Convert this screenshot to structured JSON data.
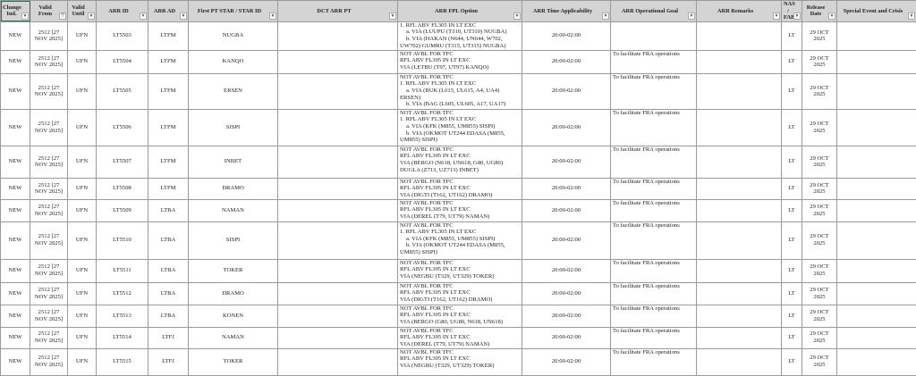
{
  "columns": [
    {
      "label": "Change Ind.",
      "filter": "▼"
    },
    {
      "label": "Valid From",
      "filter": "⊤"
    },
    {
      "label": "Valid Until",
      "filter": "▼"
    },
    {
      "label": "ARR ID",
      "filter": "▼"
    },
    {
      "label": "ARR AD",
      "filter": "▼"
    },
    {
      "label": "First PT STAR / STAR ID",
      "filter": "▼"
    },
    {
      "label": "DCT ARR PT",
      "filter": "▼"
    },
    {
      "label": "ARR FPL Option",
      "filter": "▼"
    },
    {
      "label": "ARR Time Applicability",
      "filter": "▼"
    },
    {
      "label": "ARR Operational Goal",
      "filter": "▼"
    },
    {
      "label": "ARR Remarks",
      "filter": "▼"
    },
    {
      "label": "NAS / FAB",
      "filter": "▼"
    },
    {
      "label": "Release Date",
      "filter": "▼"
    },
    {
      "label": "Special Event and Crisis",
      "filter": "▼"
    }
  ],
  "rows": [
    {
      "ind": "NEW",
      "from": "2512 [27 NOV 2025]",
      "until": "UFN",
      "id": "LT5503",
      "ad": "LTFM",
      "star": "NUGBA",
      "dct": "",
      "fpl": [
        "1. RFL ABV FL305 IN LT EXC",
        "  a. VIA (LUUPU (T310, UT310) NUGBA)",
        "  b. VIA (HAKAN (N644, UN644, W702,",
        "UW702) GUMRU (T315, UT315) NUGBA)"
      ],
      "time": "20:00-02:00",
      "goal": "",
      "remarks": "",
      "nas": "LT",
      "release": "29 OCT 2025",
      "special": ""
    },
    {
      "ind": "NEW",
      "from": "2512 [27 NOV 2025]",
      "until": "UFN",
      "id": "LT5504",
      "ad": "LTFM",
      "star": "KANQO",
      "dct": "",
      "fpl": [
        "NOT AVBL FOR TFC",
        "RFL ABV FL305 IN LT EXC",
        "VIA (LETBU (T97, UT97) KANQO)"
      ],
      "time": "20:00-02:00",
      "goal": "To facilitate FRA operations",
      "remarks": "",
      "nas": "LT",
      "release": "29 OCT 2025",
      "special": ""
    },
    {
      "ind": "NEW",
      "from": "2512 [27 NOV 2025]",
      "until": "UFN",
      "id": "LT5505",
      "ad": "LTFM",
      "star": "ERSEN",
      "dct": "",
      "fpl": [
        "NOT AVBL FOR TFC",
        "1. RFL ABV FL305 IN LT EXC",
        "  a. VIA (BUK (L615, UL615, A4, UA4)",
        "ERSEN)",
        "  b. VIA (BAG (L605, UL605, A17, UA17)"
      ],
      "time": "20:00-02:00",
      "goal": "To facilitate FRA operations",
      "remarks": "",
      "nas": "LT",
      "release": "29 OCT 2025",
      "special": ""
    },
    {
      "ind": "NEW",
      "from": "2512 [27 NOV 2025]",
      "until": "UFN",
      "id": "LT5506",
      "ad": "LTFM",
      "star": "SISPI",
      "dct": "",
      "fpl": [
        "NOT AVBL FOR TFC",
        "1. RFL ABV FL305 IN LT EXC",
        "  a. VIA (KFK (M855, UM855) SISPI)",
        "  b. VIA (OKMOT UT244 EDASA (M855,",
        "UM855) SISPI)"
      ],
      "time": "20:00-02:00",
      "goal": "To facilitate FRA operations",
      "remarks": "",
      "nas": "LT",
      "release": "29 OCT 2025",
      "special": ""
    },
    {
      "ind": "NEW",
      "from": "2512 [27 NOV 2025]",
      "until": "UFN",
      "id": "LT5507",
      "ad": "LTFM",
      "star": "INBET",
      "dct": "",
      "fpl": [
        "NOT AVBL FOR TFC",
        "RFL ABV FL305 IN LT EXC",
        "VIA (BERGO (N618, UN618, G80, UG80)",
        "DUGLA (Z713, UZ713) INBET)"
      ],
      "time": "20:00-02:00",
      "goal": "To facilitate FRA operations",
      "remarks": "",
      "nas": "LT",
      "release": "29 OCT 2025",
      "special": ""
    },
    {
      "ind": "NEW",
      "from": "2512 [27 NOV 2025]",
      "until": "UFN",
      "id": "LT5508",
      "ad": "LTFM",
      "star": "DRAMO",
      "dct": "",
      "fpl": [
        "NOT AVBL FOR TFC",
        "RFL ABV FL305 IN LT EXC",
        "VIA (DIGTI (T162, UT162) DRAMO)"
      ],
      "time": "20:00-02:00",
      "goal": "To facilitate FRA operations",
      "remarks": "",
      "nas": "LT",
      "release": "29 OCT 2025",
      "special": ""
    },
    {
      "ind": "NEW",
      "from": "2512 [27 NOV 2025]",
      "until": "UFN",
      "id": "LT5509",
      "ad": "LTBA",
      "star": "NAMAN",
      "dct": "",
      "fpl": [
        "NOT AVBL FOR TFC",
        "RFL ABV FL305 IN LT EXC",
        "VIA (DEREL (T79, UT79) NAMAN)"
      ],
      "time": "20:00-02:00",
      "goal": "To facilitate FRA operations",
      "remarks": "",
      "nas": "LT",
      "release": "29 OCT 2025",
      "special": ""
    },
    {
      "ind": "NEW",
      "from": "2512 [27 NOV 2025]",
      "until": "UFN",
      "id": "LT5510",
      "ad": "LTBA",
      "star": "SISPI",
      "dct": "",
      "fpl": [
        "NOT AVBL FOR TFC",
        "1. RFL ABV FL305 IN LT EXC",
        "  a. VIA (KFK (M855, UM855) SISPI)",
        "  b. VIA (OKMOT UT244 EDASA (M855,",
        "UM855) SISPI)"
      ],
      "time": "20:00-02:00",
      "goal": "To facilitate FRA operations",
      "remarks": "",
      "nas": "LT",
      "release": "29 OCT 2025",
      "special": ""
    },
    {
      "ind": "NEW",
      "from": "2512 [27 NOV 2025]",
      "until": "UFN",
      "id": "LT5511",
      "ad": "LTBA",
      "star": "TOKER",
      "dct": "",
      "fpl": [
        "NOT AVBL FOR TFC",
        "RFL ABV FL305 IN LT EXC",
        "VIA (NEGBU (T329, UT329) TOKER)"
      ],
      "time": "20:00-02:00",
      "goal": "To facilitate FRA operations",
      "remarks": "",
      "nas": "LT",
      "release": "29 OCT 2025",
      "special": ""
    },
    {
      "ind": "NEW",
      "from": "2512 [27 NOV 2025]",
      "until": "UFN",
      "id": "LT5512",
      "ad": "LTBA",
      "star": "DRAMO",
      "dct": "",
      "fpl": [
        "NOT AVBL FOR TFC",
        "RFL ABV FL305 IN LT EXC",
        "VIA (DIGTI (T162, UT162) DRAMO)"
      ],
      "time": "20:00-02:00",
      "goal": "To facilitate FRA operations",
      "remarks": "",
      "nas": "LT",
      "release": "29 OCT 2025",
      "special": ""
    },
    {
      "ind": "NEW",
      "from": "2512 [27 NOV 2025]",
      "until": "UFN",
      "id": "LT5513",
      "ad": "LTBA",
      "star": "KONEN",
      "dct": "",
      "fpl": [
        "NOT AVBL FOR TFC",
        "RFL ABV FL305 IN LT EXC",
        "VIA (BERGO (G80, UG80, N618, UN618)"
      ],
      "time": "20:00-02:00",
      "goal": "To facilitate FRA operations",
      "remarks": "",
      "nas": "LT",
      "release": "29 OCT 2025",
      "special": ""
    },
    {
      "ind": "NEW",
      "from": "2512 [27 NOV 2025]",
      "until": "UFN",
      "id": "LT5514",
      "ad": "LTFJ",
      "star": "NAMAN",
      "dct": "",
      "fpl": [
        "NOT AVBL FOR TFC",
        "RFL ABV FL305 IN LT EXC",
        "VIA (DEREL (T79, UT79) NAMAN)"
      ],
      "time": "20:00-02:00",
      "goal": "To facilitate FRA operations",
      "remarks": "",
      "nas": "LT",
      "release": "29 OCT 2025",
      "special": ""
    },
    {
      "ind": "NEW",
      "from": "2512 [27 NOV 2025]",
      "until": "UFN",
      "id": "LT5515",
      "ad": "LTFJ",
      "star": "TOKER",
      "dct": "",
      "fpl": [
        "NOT AVBL FOR TFC",
        "RFL ABV FL305 IN LT EXC",
        "VIA (NEGBU (T329, UT329) TOKER)"
      ],
      "time": "20:00-02:00",
      "goal": "To facilitate FRA operations",
      "remarks": "",
      "nas": "LT",
      "release": "29 OCT 2025",
      "special": ""
    }
  ]
}
